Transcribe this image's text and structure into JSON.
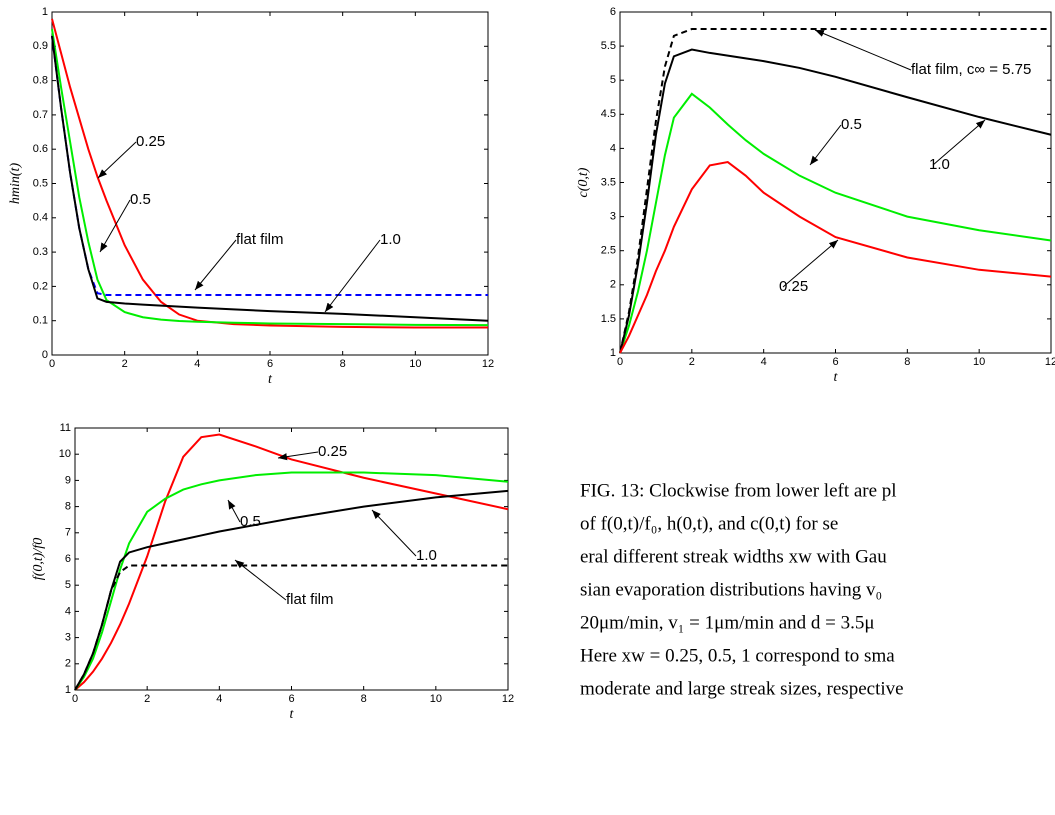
{
  "chart_data": [
    {
      "type": "line",
      "xlabel": "t",
      "ylabel": "hmin(t)",
      "x": [
        0,
        0.25,
        0.5,
        0.75,
        1,
        1.25,
        1.5,
        2,
        2.5,
        3,
        3.5,
        4,
        5,
        6,
        8,
        10,
        12
      ],
      "xlim": [
        0,
        12
      ],
      "ylim": [
        0,
        1
      ],
      "xticks": [
        0,
        2,
        4,
        6,
        8,
        10,
        12
      ],
      "yticks": [
        0,
        0.1,
        0.2,
        0.3,
        0.4,
        0.5,
        0.6,
        0.7,
        0.8,
        0.9,
        1
      ],
      "series": [
        {
          "name": "0.25",
          "color": "#ff0000",
          "style": "solid",
          "values": [
            0.98,
            0.88,
            0.78,
            0.69,
            0.6,
            0.52,
            0.45,
            0.32,
            0.22,
            0.155,
            0.118,
            0.1,
            0.09,
            0.086,
            0.082,
            0.08,
            0.08
          ]
        },
        {
          "name": "0.5",
          "color": "#00ee00",
          "style": "solid",
          "values": [
            0.95,
            0.78,
            0.62,
            0.46,
            0.33,
            0.22,
            0.16,
            0.125,
            0.11,
            0.103,
            0.099,
            0.097,
            0.094,
            0.092,
            0.09,
            0.088,
            0.087
          ]
        },
        {
          "name": "flat film",
          "color": "#0000ff",
          "style": "dashed",
          "values": [
            0.93,
            0.72,
            0.53,
            0.37,
            0.25,
            0.18,
            0.175,
            0.175,
            0.175,
            0.175,
            0.175,
            0.175,
            0.175,
            0.175,
            0.175,
            0.175,
            0.175
          ]
        },
        {
          "name": "1.0",
          "color": "#000000",
          "style": "solid",
          "values": [
            0.93,
            0.72,
            0.53,
            0.37,
            0.25,
            0.165,
            0.155,
            0.15,
            0.147,
            0.144,
            0.141,
            0.138,
            0.133,
            0.128,
            0.12,
            0.11,
            0.1
          ]
        }
      ]
    },
    {
      "type": "line",
      "xlabel": "t",
      "ylabel": "c(0,t)",
      "x": [
        0,
        0.25,
        0.5,
        0.75,
        1,
        1.25,
        1.5,
        2,
        2.5,
        3,
        3.5,
        4,
        5,
        6,
        8,
        10,
        12
      ],
      "xlim": [
        0,
        12
      ],
      "ylim": [
        1,
        6
      ],
      "xticks": [
        0,
        2,
        4,
        6,
        8,
        10,
        12
      ],
      "yticks": [
        1,
        1.5,
        2,
        2.5,
        3,
        3.5,
        4,
        4.5,
        5,
        5.5,
        6
      ],
      "series": [
        {
          "name": "flat film, c∞ = 5.75",
          "color": "#000000",
          "style": "dashed",
          "values": [
            1,
            1.6,
            2.4,
            3.4,
            4.4,
            5.2,
            5.65,
            5.75,
            5.75,
            5.75,
            5.75,
            5.75,
            5.75,
            5.75,
            5.75,
            5.75,
            5.75
          ]
        },
        {
          "name": "0.5",
          "color": "#00ee00",
          "style": "solid",
          "values": [
            1,
            1.4,
            1.9,
            2.5,
            3.2,
            3.9,
            4.45,
            4.8,
            4.6,
            4.35,
            4.12,
            3.92,
            3.6,
            3.35,
            3.0,
            2.8,
            2.65
          ]
        },
        {
          "name": "1.0",
          "color": "#000000",
          "style": "solid",
          "values": [
            1,
            1.55,
            2.3,
            3.2,
            4.2,
            4.95,
            5.35,
            5.45,
            5.4,
            5.36,
            5.32,
            5.28,
            5.18,
            5.05,
            4.75,
            4.46,
            4.2
          ]
        },
        {
          "name": "0.25",
          "color": "#ff0000",
          "style": "solid",
          "values": [
            1,
            1.25,
            1.55,
            1.85,
            2.2,
            2.5,
            2.85,
            3.4,
            3.75,
            3.8,
            3.6,
            3.35,
            3.0,
            2.7,
            2.4,
            2.22,
            2.12
          ]
        }
      ]
    },
    {
      "type": "line",
      "xlabel": "t",
      "ylabel": "f(0,t)/f0",
      "x": [
        0,
        0.25,
        0.5,
        0.75,
        1,
        1.25,
        1.5,
        2,
        2.5,
        3,
        3.5,
        4,
        5,
        6,
        8,
        10,
        12
      ],
      "xlim": [
        0,
        12
      ],
      "ylim": [
        1,
        11
      ],
      "xticks": [
        0,
        2,
        4,
        6,
        8,
        10,
        12
      ],
      "yticks": [
        1,
        2,
        3,
        4,
        5,
        6,
        7,
        8,
        9,
        10,
        11
      ],
      "series": [
        {
          "name": "0.25",
          "color": "#ff0000",
          "style": "solid",
          "values": [
            1,
            1.3,
            1.7,
            2.2,
            2.8,
            3.5,
            4.3,
            6.1,
            8.2,
            9.9,
            10.65,
            10.75,
            10.3,
            9.8,
            9.1,
            8.5,
            7.9
          ]
        },
        {
          "name": "0.5",
          "color": "#00ee00",
          "style": "solid",
          "values": [
            1,
            1.5,
            2.2,
            3.2,
            4.4,
            5.6,
            6.6,
            7.8,
            8.3,
            8.65,
            8.85,
            9.0,
            9.2,
            9.3,
            9.3,
            9.2,
            8.95
          ]
        },
        {
          "name": "1.0",
          "color": "#000000",
          "style": "solid",
          "values": [
            1,
            1.6,
            2.4,
            3.5,
            4.8,
            5.9,
            6.25,
            6.45,
            6.6,
            6.75,
            6.9,
            7.05,
            7.3,
            7.55,
            8.0,
            8.35,
            8.6
          ]
        },
        {
          "name": "flat film",
          "color": "#000000",
          "style": "dashed",
          "values": [
            1,
            1.6,
            2.4,
            3.5,
            4.8,
            5.5,
            5.75,
            5.75,
            5.75,
            5.75,
            5.75,
            5.75,
            5.75,
            5.75,
            5.75,
            5.75,
            5.75
          ]
        }
      ]
    }
  ],
  "caption": {
    "lines": [
      "FIG. 13: Clockwise from lower left are pl",
      "of f(0,t)/f₀,  h(0,t),  and  c(0,t)  for  se",
      "eral different streak widths xw with Gau",
      "sian evaporation distributions having v₀",
      "20μm/min, v₁ = 1μm/min and d = 3.5μ",
      "Here xw = 0.25, 0.5, 1 correspond to sma",
      "moderate and large streak sizes, respective"
    ]
  }
}
